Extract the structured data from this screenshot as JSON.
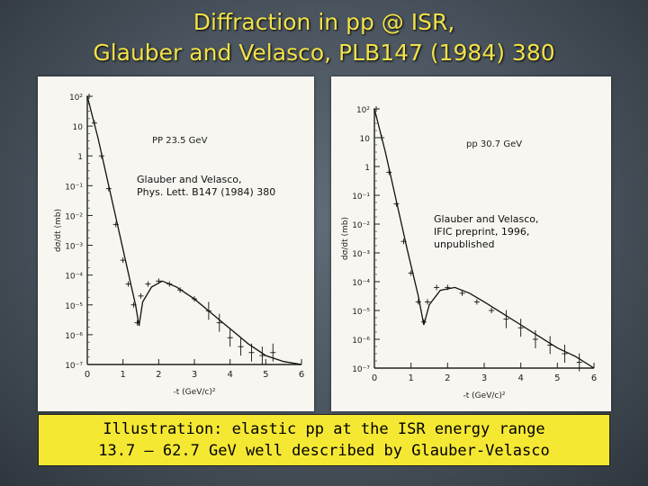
{
  "title": {
    "line1": "Diffraction in pp @ ISR,",
    "line2": "Glauber and Velasco, PLB147 (1984) 380"
  },
  "caption": {
    "line1": "Illustration: elastic pp at the ISR energy range",
    "line2": "13.7 – 62.7 GeV well described by Glauber-Velasco"
  },
  "colors": {
    "title": "#f2e24a",
    "caption_bg": "#f5e833",
    "panel_bg": "#f7f6f1"
  },
  "chart_data": [
    {
      "type": "scatter",
      "label": "PP  23.5  GeV",
      "note": [
        "Glauber and Velasco,",
        "Phys. Lett. B147 (1984) 380"
      ],
      "xlabel": "-t  (GeV/c)²",
      "ylabel": "dσ/dt  (mb)",
      "xlim": [
        0,
        6
      ],
      "x_ticks": [
        "0",
        "1",
        "2",
        "3",
        "4",
        "5",
        "6"
      ],
      "y_ticks": [
        "10²",
        "10",
        "1",
        "10⁻¹",
        "10⁻²",
        "10⁻³",
        "10⁻⁴",
        "10⁻⁵",
        "10⁻⁶",
        "10⁻⁷"
      ],
      "ylim_log10": [
        -7,
        2
      ],
      "points": [
        [
          0.05,
          2.0
        ],
        [
          0.2,
          1.1
        ],
        [
          0.4,
          0.0
        ],
        [
          0.6,
          -1.1
        ],
        [
          0.8,
          -2.3
        ],
        [
          1.0,
          -3.5
        ],
        [
          1.15,
          -4.3
        ],
        [
          1.3,
          -5.0
        ],
        [
          1.4,
          -5.6
        ],
        [
          1.5,
          -4.7
        ],
        [
          1.7,
          -4.3
        ],
        [
          2.0,
          -4.2
        ],
        [
          2.3,
          -4.3
        ],
        [
          2.6,
          -4.5
        ],
        [
          3.0,
          -4.8
        ],
        [
          3.4,
          -5.2
        ],
        [
          3.7,
          -5.6
        ],
        [
          4.0,
          -6.1
        ],
        [
          4.3,
          -6.4
        ],
        [
          4.6,
          -6.6
        ],
        [
          4.9,
          -6.7
        ],
        [
          5.2,
          -6.6
        ]
      ],
      "curve": [
        [
          0.0,
          2.0
        ],
        [
          0.3,
          0.6
        ],
        [
          0.6,
          -1.0
        ],
        [
          0.9,
          -2.6
        ],
        [
          1.2,
          -4.2
        ],
        [
          1.35,
          -5.0
        ],
        [
          1.45,
          -5.7
        ],
        [
          1.55,
          -4.9
        ],
        [
          1.8,
          -4.4
        ],
        [
          2.1,
          -4.2
        ],
        [
          2.5,
          -4.4
        ],
        [
          3.0,
          -4.8
        ],
        [
          3.5,
          -5.3
        ],
        [
          4.0,
          -5.8
        ],
        [
          4.5,
          -6.3
        ],
        [
          5.0,
          -6.7
        ],
        [
          5.5,
          -6.9
        ],
        [
          6.0,
          -7.0
        ]
      ]
    },
    {
      "type": "scatter",
      "label": "pp  30.7  GeV",
      "note": [
        "Glauber and Velasco,",
        "IFIC preprint, 1996,",
        "unpublished"
      ],
      "xlabel": "-t  (GeV/c)²",
      "ylabel": "dσ/dt  (mb)",
      "xlim": [
        0,
        6
      ],
      "x_ticks": [
        "0",
        "1",
        "2",
        "3",
        "4",
        "5",
        "6"
      ],
      "y_ticks": [
        "10²",
        "10",
        "1",
        "10⁻¹",
        "10⁻²",
        "10⁻³",
        "10⁻⁴",
        "10⁻⁵",
        "10⁻⁶",
        "10⁻⁷"
      ],
      "ylim_log10": [
        -7,
        2
      ],
      "points": [
        [
          0.05,
          2.0
        ],
        [
          0.2,
          1.0
        ],
        [
          0.4,
          -0.2
        ],
        [
          0.6,
          -1.3
        ],
        [
          0.8,
          -2.6
        ],
        [
          1.0,
          -3.7
        ],
        [
          1.2,
          -4.7
        ],
        [
          1.35,
          -5.4
        ],
        [
          1.45,
          -4.7
        ],
        [
          1.7,
          -4.2
        ],
        [
          2.0,
          -4.2
        ],
        [
          2.4,
          -4.4
        ],
        [
          2.8,
          -4.7
        ],
        [
          3.2,
          -5.0
        ],
        [
          3.6,
          -5.3
        ],
        [
          4.0,
          -5.6
        ],
        [
          4.4,
          -6.0
        ],
        [
          4.8,
          -6.2
        ],
        [
          5.2,
          -6.5
        ],
        [
          5.6,
          -6.8
        ]
      ],
      "curve": [
        [
          0.0,
          2.0
        ],
        [
          0.3,
          0.5
        ],
        [
          0.6,
          -1.2
        ],
        [
          0.9,
          -2.9
        ],
        [
          1.2,
          -4.5
        ],
        [
          1.35,
          -5.5
        ],
        [
          1.5,
          -4.8
        ],
        [
          1.8,
          -4.3
        ],
        [
          2.2,
          -4.2
        ],
        [
          2.6,
          -4.4
        ],
        [
          3.0,
          -4.7
        ],
        [
          3.5,
          -5.1
        ],
        [
          4.0,
          -5.5
        ],
        [
          4.5,
          -5.9
        ],
        [
          5.0,
          -6.3
        ],
        [
          5.5,
          -6.6
        ],
        [
          6.0,
          -7.0
        ]
      ]
    }
  ]
}
